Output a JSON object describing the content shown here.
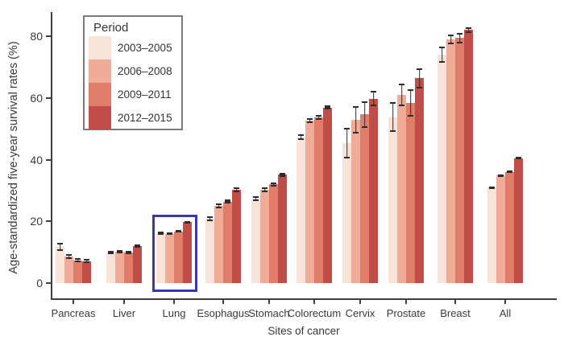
{
  "chart_data": {
    "type": "bar",
    "title": "",
    "xlabel": "Sites of cancer",
    "ylabel": "Age-standardized five-year survival rates (%)",
    "categories": [
      "Pancreas",
      "Liver",
      "Lung",
      "Esophagus",
      "Stomach",
      "Colorectum",
      "Cervix",
      "Prostate",
      "Breast",
      "All"
    ],
    "series": [
      {
        "name": "2003–2005",
        "color": "#f8e3d9",
        "values": [
          11.7,
          10.0,
          16.1,
          20.9,
          27.4,
          47.2,
          45.4,
          53.8,
          74.0,
          30.9
        ],
        "errors": [
          1.2,
          0.5,
          0.5,
          0.8,
          0.8,
          0.9,
          5.0,
          4.8,
          2.6,
          0.3
        ]
      },
      {
        "name": "2006–2008",
        "color": "#f0ac99",
        "values": [
          8.6,
          10.2,
          16.0,
          25.0,
          30.2,
          52.6,
          52.8,
          60.9,
          78.9,
          34.9
        ],
        "errors": [
          0.9,
          0.5,
          0.4,
          0.7,
          0.7,
          0.8,
          4.4,
          3.6,
          1.5,
          0.3
        ]
      },
      {
        "name": "2009–2011",
        "color": "#e07d68",
        "values": [
          7.4,
          9.8,
          16.8,
          26.4,
          32.0,
          53.7,
          54.6,
          58.4,
          79.4,
          36.0
        ],
        "errors": [
          0.7,
          0.5,
          0.4,
          0.6,
          0.7,
          0.8,
          4.2,
          4.5,
          1.7,
          0.3
        ]
      },
      {
        "name": "2012–2015",
        "color": "#c04d48",
        "values": [
          7.1,
          12.0,
          19.7,
          30.3,
          35.1,
          56.9,
          59.8,
          66.4,
          82.0,
          40.5
        ],
        "errors": [
          0.7,
          0.5,
          0.3,
          0.8,
          0.6,
          0.6,
          2.6,
          3.3,
          0.9,
          0.2
        ]
      }
    ],
    "error_bars": true,
    "ylim": [
      0,
      80
    ],
    "yticks": [
      0,
      20,
      40,
      60,
      80
    ],
    "grid": false,
    "legend": {
      "title": "Period",
      "position": "top-left"
    },
    "annotation": {
      "type": "highlight-box",
      "target": "Lung",
      "color": "#3737b3"
    }
  }
}
